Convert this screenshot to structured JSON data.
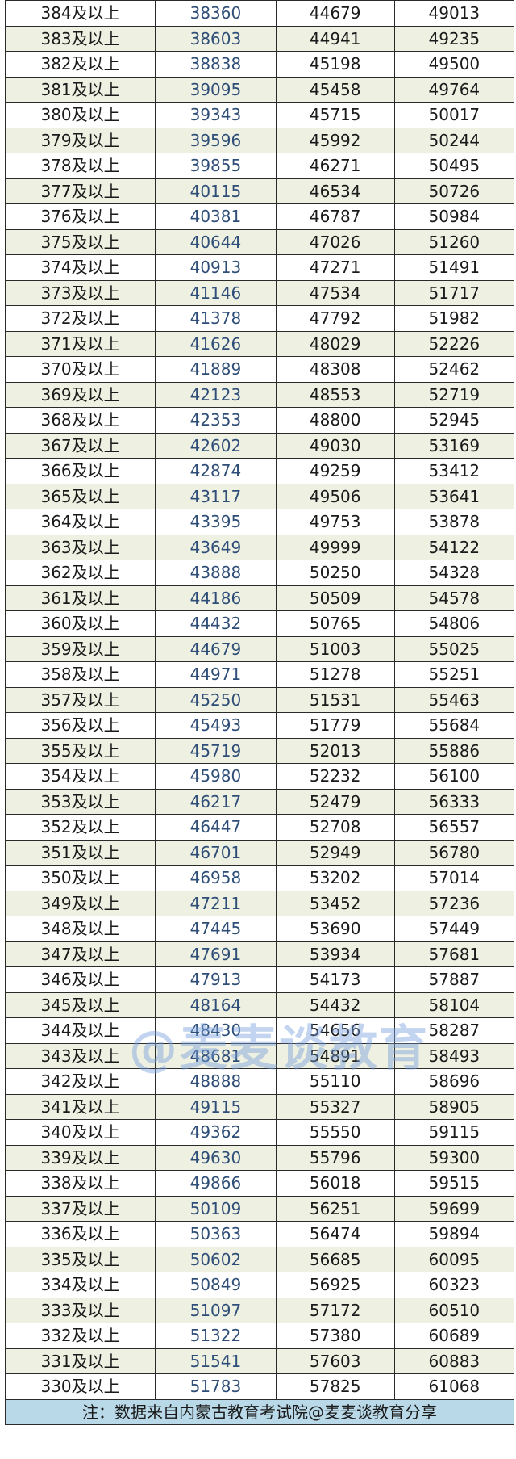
{
  "rows": [
    [
      "384及以上",
      "38360",
      "44679",
      "49013"
    ],
    [
      "383及以上",
      "38603",
      "44941",
      "49235"
    ],
    [
      "382及以上",
      "38838",
      "45198",
      "49500"
    ],
    [
      "381及以上",
      "39095",
      "45458",
      "49764"
    ],
    [
      "380及以上",
      "39343",
      "45715",
      "50017"
    ],
    [
      "379及以上",
      "39596",
      "45992",
      "50244"
    ],
    [
      "378及以上",
      "39855",
      "46271",
      "50495"
    ],
    [
      "377及以上",
      "40115",
      "46534",
      "50726"
    ],
    [
      "376及以上",
      "40381",
      "46787",
      "50984"
    ],
    [
      "375及以上",
      "40644",
      "47026",
      "51260"
    ],
    [
      "374及以上",
      "40913",
      "47271",
      "51491"
    ],
    [
      "373及以上",
      "41146",
      "47534",
      "51717"
    ],
    [
      "372及以上",
      "41378",
      "47792",
      "51982"
    ],
    [
      "371及以上",
      "41626",
      "48029",
      "52226"
    ],
    [
      "370及以上",
      "41889",
      "48308",
      "52462"
    ],
    [
      "369及以上",
      "42123",
      "48553",
      "52719"
    ],
    [
      "368及以上",
      "42353",
      "48800",
      "52945"
    ],
    [
      "367及以上",
      "42602",
      "49030",
      "53169"
    ],
    [
      "366及以上",
      "42874",
      "49259",
      "53412"
    ],
    [
      "365及以上",
      "43117",
      "49506",
      "53641"
    ],
    [
      "364及以上",
      "43395",
      "49753",
      "53878"
    ],
    [
      "363及以上",
      "43649",
      "49999",
      "54122"
    ],
    [
      "362及以上",
      "43888",
      "50250",
      "54328"
    ],
    [
      "361及以上",
      "44186",
      "50509",
      "54578"
    ],
    [
      "360及以上",
      "44432",
      "50765",
      "54806"
    ],
    [
      "359及以上",
      "44679",
      "51003",
      "55025"
    ],
    [
      "358及以上",
      "44971",
      "51278",
      "55251"
    ],
    [
      "357及以上",
      "45250",
      "51531",
      "55463"
    ],
    [
      "356及以上",
      "45493",
      "51779",
      "55684"
    ],
    [
      "355及以上",
      "45719",
      "52013",
      "55886"
    ],
    [
      "354及以上",
      "45980",
      "52232",
      "56100"
    ],
    [
      "353及以上",
      "46217",
      "52479",
      "56333"
    ],
    [
      "352及以上",
      "46447",
      "52708",
      "56557"
    ],
    [
      "351及以上",
      "46701",
      "52949",
      "56780"
    ],
    [
      "350及以上",
      "46958",
      "53202",
      "57014"
    ],
    [
      "349及以上",
      "47211",
      "53452",
      "57236"
    ],
    [
      "348及以上",
      "47445",
      "53690",
      "57449"
    ],
    [
      "347及以上",
      "47691",
      "53934",
      "57681"
    ],
    [
      "346及以上",
      "47913",
      "54173",
      "57887"
    ],
    [
      "345及以上",
      "48164",
      "54432",
      "58104"
    ],
    [
      "344及以上",
      "48430",
      "54656",
      "58287"
    ],
    [
      "343及以上",
      "48681",
      "54891",
      "58493"
    ],
    [
      "342及以上",
      "48888",
      "55110",
      "58696"
    ],
    [
      "341及以上",
      "49115",
      "55327",
      "58905"
    ],
    [
      "340及以上",
      "49362",
      "55550",
      "59115"
    ],
    [
      "339及以上",
      "49630",
      "55796",
      "59300"
    ],
    [
      "338及以上",
      "49866",
      "56018",
      "59515"
    ],
    [
      "337及以上",
      "50109",
      "56251",
      "59699"
    ],
    [
      "336及以上",
      "50363",
      "56474",
      "59894"
    ],
    [
      "335及以上",
      "50602",
      "56685",
      "60095"
    ],
    [
      "334及以上",
      "50849",
      "56925",
      "60323"
    ],
    [
      "333及以上",
      "51097",
      "57172",
      "60510"
    ],
    [
      "332及以上",
      "51322",
      "57380",
      "60689"
    ],
    [
      "331及以上",
      "51541",
      "57603",
      "60883"
    ],
    [
      "330及以上",
      "51783",
      "57825",
      "61068"
    ]
  ],
  "footer_note": "注：数据来自内蒙古教育考试院@麦麦谈教育分享",
  "watermark": "@麦麦谈教育",
  "colors": {
    "stripe": "#eef0e2",
    "col2_text": "#2e4e78",
    "footer_bg": "#b9d9e8"
  }
}
